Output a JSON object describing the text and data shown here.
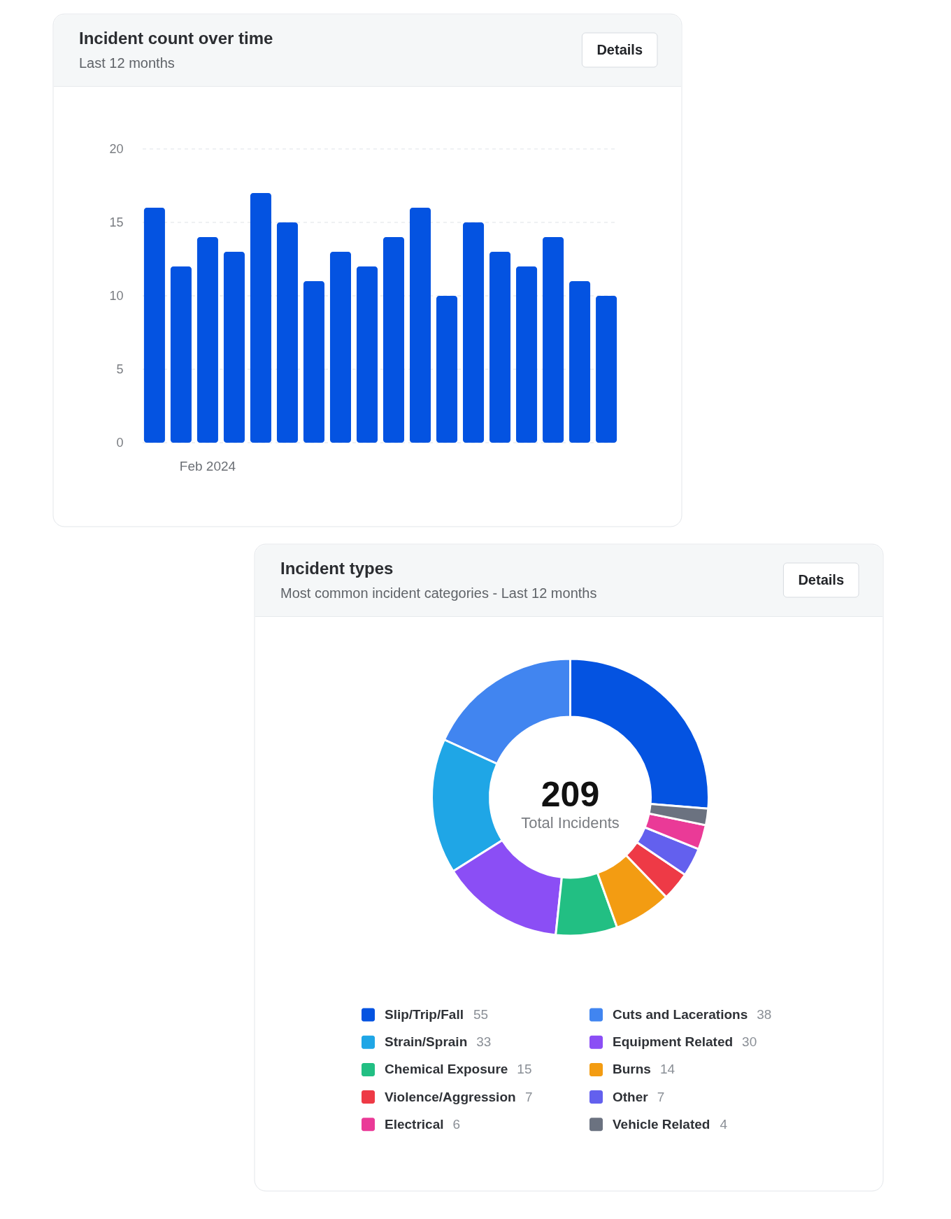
{
  "chart_data": [
    {
      "type": "bar",
      "title": "Incident count over time",
      "subtitle": "Last 12 months",
      "categories": [
        null,
        null,
        "Feb 2024",
        null,
        null,
        null,
        null,
        null,
        null,
        null,
        null,
        null,
        null,
        null,
        null,
        null,
        null,
        null
      ],
      "values": [
        16,
        12,
        14,
        13,
        17,
        15,
        11,
        13,
        12,
        14,
        16,
        10,
        15,
        13,
        12,
        14,
        11,
        10
      ],
      "color": "#0453e1",
      "ylim": [
        0,
        20
      ],
      "yticks": [
        0,
        5,
        10,
        15,
        20
      ],
      "grid": "y",
      "annotations": [
        "Details"
      ]
    },
    {
      "type": "donut",
      "title": "Incident types",
      "subtitle": "Most common incident categories - Last 12 months",
      "categories": [
        "Slip/Trip/Fall",
        "Cuts and Lacerations",
        "Strain/Sprain",
        "Equipment Related",
        "Chemical Exposure",
        "Burns",
        "Violence/Aggression",
        "Other",
        "Electrical",
        "Vehicle Related"
      ],
      "values": [
        55,
        38,
        33,
        30,
        15,
        14,
        7,
        7,
        6,
        4
      ],
      "colors": [
        "#0453e1",
        "#4185f0",
        "#1fa6e6",
        "#8b4ef5",
        "#22bf83",
        "#f39c12",
        "#ee3a46",
        "#6360ee",
        "#ea3a97",
        "#6b7280"
      ],
      "data_labels": true,
      "legend": "bottom",
      "annotations": [
        "209",
        "Total Incidents",
        "Details"
      ]
    }
  ]
}
